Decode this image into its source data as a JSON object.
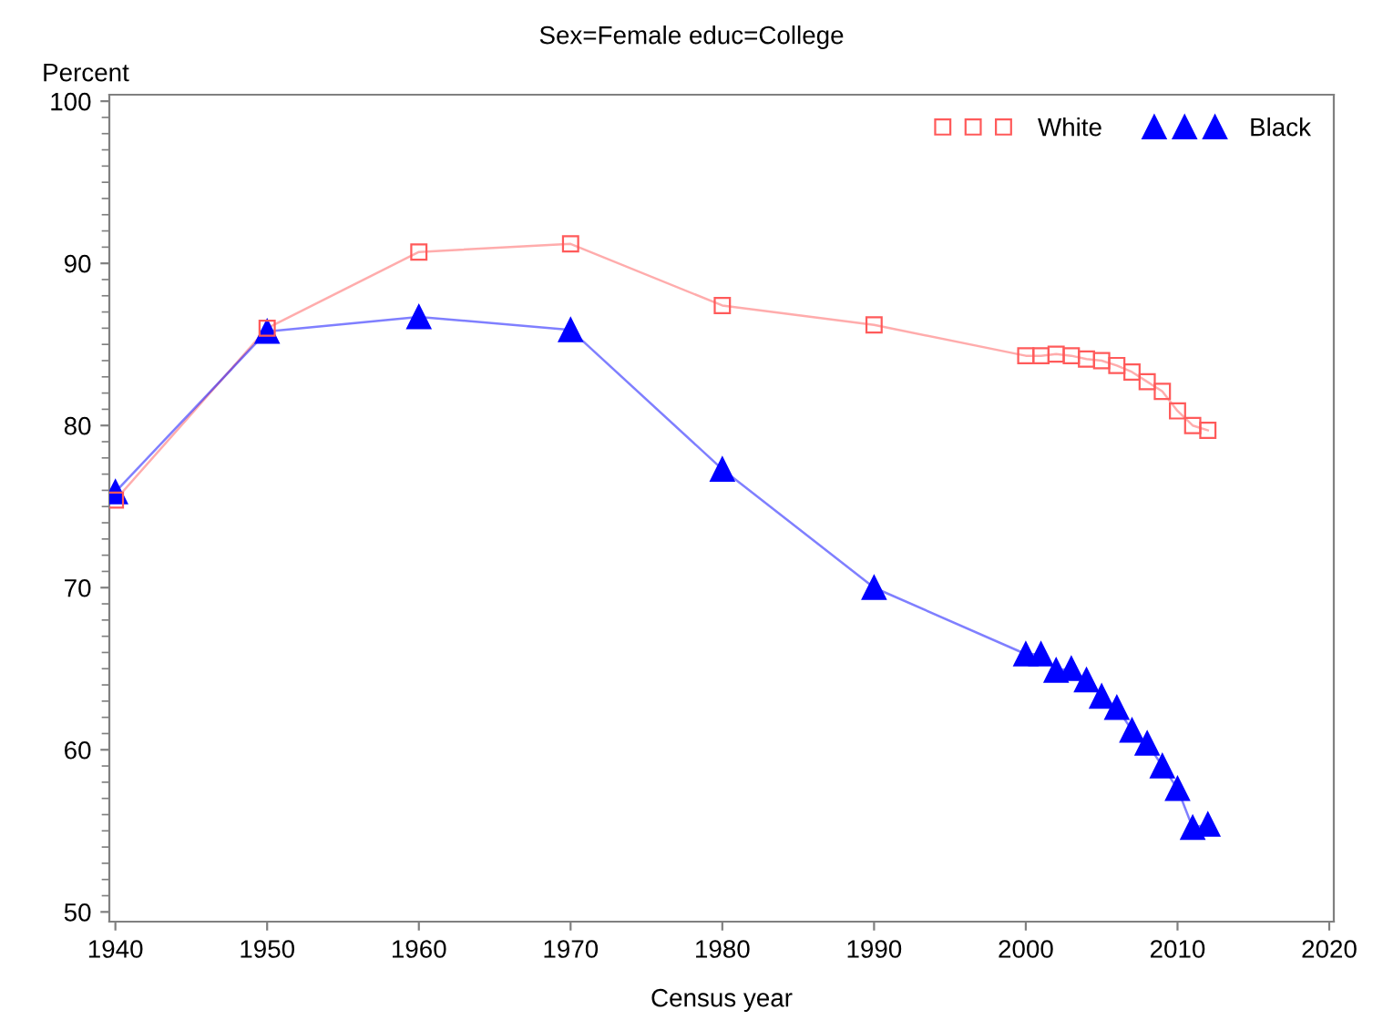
{
  "chart_data": {
    "type": "line",
    "title": "Sex=Female educ=College",
    "xlabel": "Census year",
    "ylabel": "Percent",
    "xlim": [
      1939.6,
      2020.3
    ],
    "ylim": [
      49.4,
      100.4
    ],
    "xticks": [
      1940,
      1950,
      1960,
      1970,
      1980,
      1990,
      2000,
      2010,
      2020
    ],
    "yticks": [
      50,
      60,
      70,
      80,
      90,
      100
    ],
    "grid": false,
    "legend": "top right",
    "line_style": "solid",
    "x": [
      1940,
      1950,
      1960,
      1970,
      1980,
      1990,
      2000,
      2001,
      2002,
      2003,
      2004,
      2005,
      2006,
      2007,
      2008,
      2009,
      2010,
      2011,
      2012
    ],
    "series": [
      {
        "name": "White",
        "color": "#ff5a5a",
        "marker": "square",
        "values": [
          75.4,
          86.0,
          90.7,
          91.2,
          87.4,
          86.2,
          84.3,
          84.3,
          84.4,
          84.3,
          84.1,
          84.0,
          83.7,
          83.3,
          82.7,
          82.1,
          80.9,
          80.0,
          79.7
        ]
      },
      {
        "name": "Black",
        "color": "#0000ff",
        "marker": "triangle",
        "values": [
          75.9,
          85.8,
          86.7,
          85.9,
          77.3,
          70.0,
          65.9,
          65.9,
          64.9,
          65.0,
          64.3,
          63.3,
          62.6,
          61.2,
          60.4,
          59.0,
          57.6,
          55.2,
          55.4
        ]
      }
    ]
  }
}
